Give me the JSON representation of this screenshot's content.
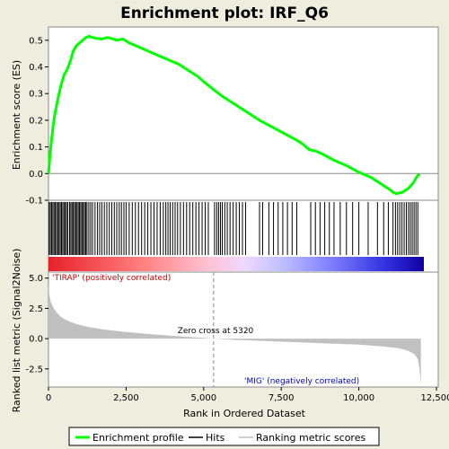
{
  "chart_data": {
    "type": "line",
    "title": "Enrichment plot: IRF_Q6",
    "xlabel": "Rank in Ordered Dataset",
    "xlim": [
      0,
      12500
    ],
    "x_ticks": [
      "0",
      "2,500",
      "5,000",
      "7,500",
      "10,000",
      "12,500"
    ],
    "x_tick_values": [
      0,
      2500,
      5000,
      7500,
      10000,
      12500
    ],
    "top_panel": {
      "ylabel": "Enrichment score (ES)",
      "ylim": [
        -0.1,
        0.55
      ],
      "y_ticks": [
        "-0.1",
        "0.0",
        "0.1",
        "0.2",
        "0.3",
        "0.4",
        "0.5"
      ],
      "y_tick_values": [
        -0.1,
        0.0,
        0.1,
        0.2,
        0.3,
        0.4,
        0.5
      ],
      "series": [
        {
          "name": "Enrichment profile",
          "color": "#00ff00",
          "x": [
            0,
            50,
            100,
            150,
            200,
            300,
            400,
            500,
            600,
            700,
            800,
            900,
            1000,
            1100,
            1200,
            1300,
            1500,
            1700,
            1900,
            2000,
            2200,
            2400,
            2600,
            2800,
            3000,
            3200,
            3400,
            3600,
            3800,
            4000,
            4200,
            4400,
            4600,
            4800,
            5000,
            5320,
            5600,
            6000,
            6400,
            6800,
            7200,
            7600,
            8000,
            8200,
            8400,
            8600,
            8800,
            9200,
            9600,
            10000,
            10400,
            10800,
            11000,
            11100,
            11200,
            11400,
            11600,
            11750,
            11850,
            11950
          ],
          "y": [
            0.0,
            0.07,
            0.13,
            0.18,
            0.22,
            0.28,
            0.33,
            0.37,
            0.39,
            0.42,
            0.46,
            0.48,
            0.49,
            0.5,
            0.51,
            0.515,
            0.508,
            0.505,
            0.51,
            0.508,
            0.5,
            0.505,
            0.49,
            0.48,
            0.47,
            0.46,
            0.45,
            0.44,
            0.43,
            0.42,
            0.41,
            0.395,
            0.38,
            0.365,
            0.345,
            0.315,
            0.29,
            0.26,
            0.23,
            0.2,
            0.175,
            0.15,
            0.125,
            0.11,
            0.09,
            0.085,
            0.075,
            0.05,
            0.03,
            0.005,
            -0.015,
            -0.045,
            -0.06,
            -0.07,
            -0.075,
            -0.07,
            -0.055,
            -0.035,
            -0.015,
            0.0
          ]
        }
      ]
    },
    "hits_panel": {
      "hit_ranks": [
        20,
        60,
        100,
        140,
        180,
        220,
        260,
        300,
        340,
        380,
        420,
        460,
        500,
        540,
        580,
        620,
        680,
        720,
        760,
        800,
        840,
        880,
        920,
        960,
        1000,
        1040,
        1080,
        1120,
        1160,
        1200,
        1240,
        1300,
        1360,
        1420,
        1500,
        1580,
        1650,
        1720,
        1800,
        1880,
        1960,
        2040,
        2120,
        2200,
        2280,
        2350,
        2430,
        2500,
        2600,
        2700,
        2800,
        2900,
        3000,
        3100,
        3200,
        3300,
        3400,
        3500,
        3600,
        3700,
        3780,
        3850,
        3920,
        4000,
        4080,
        4160,
        4250,
        4350,
        4450,
        4550,
        4650,
        4750,
        4850,
        4950,
        5050,
        5150,
        5350,
        5420,
        5480,
        5540,
        5600,
        5680,
        5760,
        5850,
        5950,
        6050,
        6150,
        6250,
        6350,
        6800,
        6900,
        7100,
        7250,
        7400,
        7550,
        7700,
        7850,
        8000,
        8450,
        8600,
        8750,
        8900,
        9050,
        9200,
        9400,
        9600,
        9800,
        10000,
        10300,
        10600,
        10800,
        10950,
        11100,
        11180,
        11250,
        11320,
        11390,
        11460,
        11530,
        11600,
        11660,
        11720,
        11780,
        11840,
        11900
      ],
      "gradient_colors": [
        "#e8202a",
        "#ff8080",
        "#ffc0d0",
        "#f0d8ff",
        "#c0c0ff",
        "#8080ff",
        "#3030e0",
        "#1000a0"
      ]
    },
    "metric_panel": {
      "ylabel": "Ranked list metric (Signal2Noise)",
      "ylim": [
        -4.0,
        5.5
      ],
      "y_ticks": [
        "-2.5",
        "0.0",
        "2.5",
        "5.0"
      ],
      "y_tick_values": [
        -2.5,
        0.0,
        2.5,
        5.0
      ],
      "fill_color": "#c0c0c0",
      "x": [
        0,
        30,
        80,
        150,
        250,
        400,
        600,
        900,
        1300,
        1800,
        2500,
        3500,
        4500,
        5320,
        6000,
        7000,
        8000,
        9000,
        10000,
        10800,
        11300,
        11600,
        11800,
        11900,
        11950,
        12000
      ],
      "y": [
        4.6,
        3.6,
        3.0,
        2.6,
        2.2,
        1.8,
        1.5,
        1.2,
        0.95,
        0.75,
        0.55,
        0.32,
        0.15,
        0.0,
        -0.1,
        -0.2,
        -0.3,
        -0.4,
        -0.5,
        -0.65,
        -0.8,
        -1.0,
        -1.3,
        -1.7,
        -2.4,
        -3.8
      ],
      "zero_cross_label": "Zero cross at 5320",
      "zero_cross": 5320,
      "pos_label": "'TIRAP' (positively correlated)",
      "neg_label": "'MIG' (negatively correlated)",
      "pos_color": "#cc0000",
      "neg_color": "#0000cc"
    },
    "legend": {
      "placement": "bottom",
      "items": [
        {
          "name": "Enrichment profile",
          "color": "#00ff00"
        },
        {
          "name": "Hits",
          "color": "#000000"
        },
        {
          "name": "Ranking metric scores",
          "color": "#c0c0c0"
        }
      ]
    }
  }
}
